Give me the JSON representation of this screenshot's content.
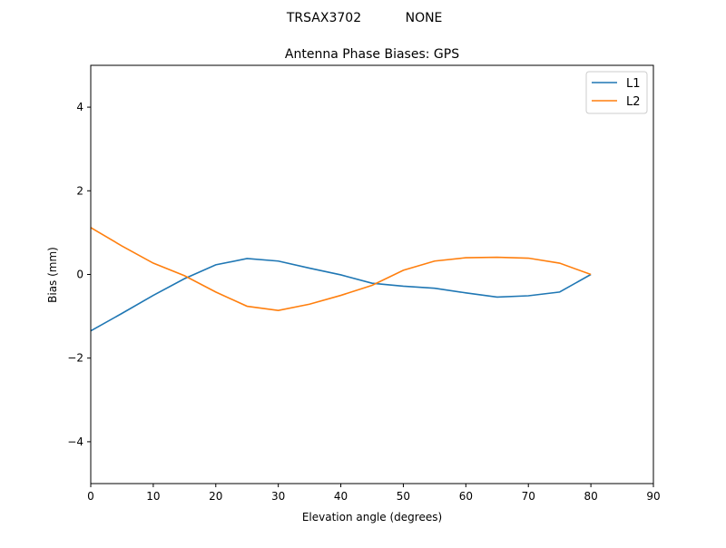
{
  "chart_data": {
    "type": "line",
    "suptitle_left": "TRSAX3702",
    "suptitle_right": "NONE",
    "title": "Antenna Phase Biases: GPS",
    "xlabel": "Elevation angle (degrees)",
    "ylabel": "Bias (mm)",
    "xlim": [
      0,
      90
    ],
    "ylim": [
      -5,
      5
    ],
    "xticks": [
      0,
      10,
      20,
      30,
      40,
      50,
      60,
      70,
      80,
      90
    ],
    "yticks": [
      -4,
      -2,
      0,
      2,
      4
    ],
    "ytick_labels": [
      "−4",
      "−2",
      "0",
      "2",
      "4"
    ],
    "grid": false,
    "legend_position": "top-right",
    "x": [
      0,
      5,
      10,
      15,
      20,
      25,
      30,
      35,
      40,
      45,
      50,
      55,
      60,
      65,
      70,
      75,
      80
    ],
    "series": [
      {
        "name": "L1",
        "color": "#1f77b4",
        "values": [
          -1.35,
          -0.93,
          -0.5,
          -0.1,
          0.23,
          0.38,
          0.32,
          0.15,
          -0.01,
          -0.21,
          -0.28,
          -0.33,
          -0.44,
          -0.54,
          -0.51,
          -0.42,
          0.0
        ]
      },
      {
        "name": "L2",
        "color": "#ff7f0e",
        "values": [
          1.12,
          0.68,
          0.27,
          -0.03,
          -0.42,
          -0.76,
          -0.86,
          -0.71,
          -0.5,
          -0.26,
          0.1,
          0.32,
          0.4,
          0.41,
          0.39,
          0.27,
          0.0
        ]
      }
    ]
  }
}
